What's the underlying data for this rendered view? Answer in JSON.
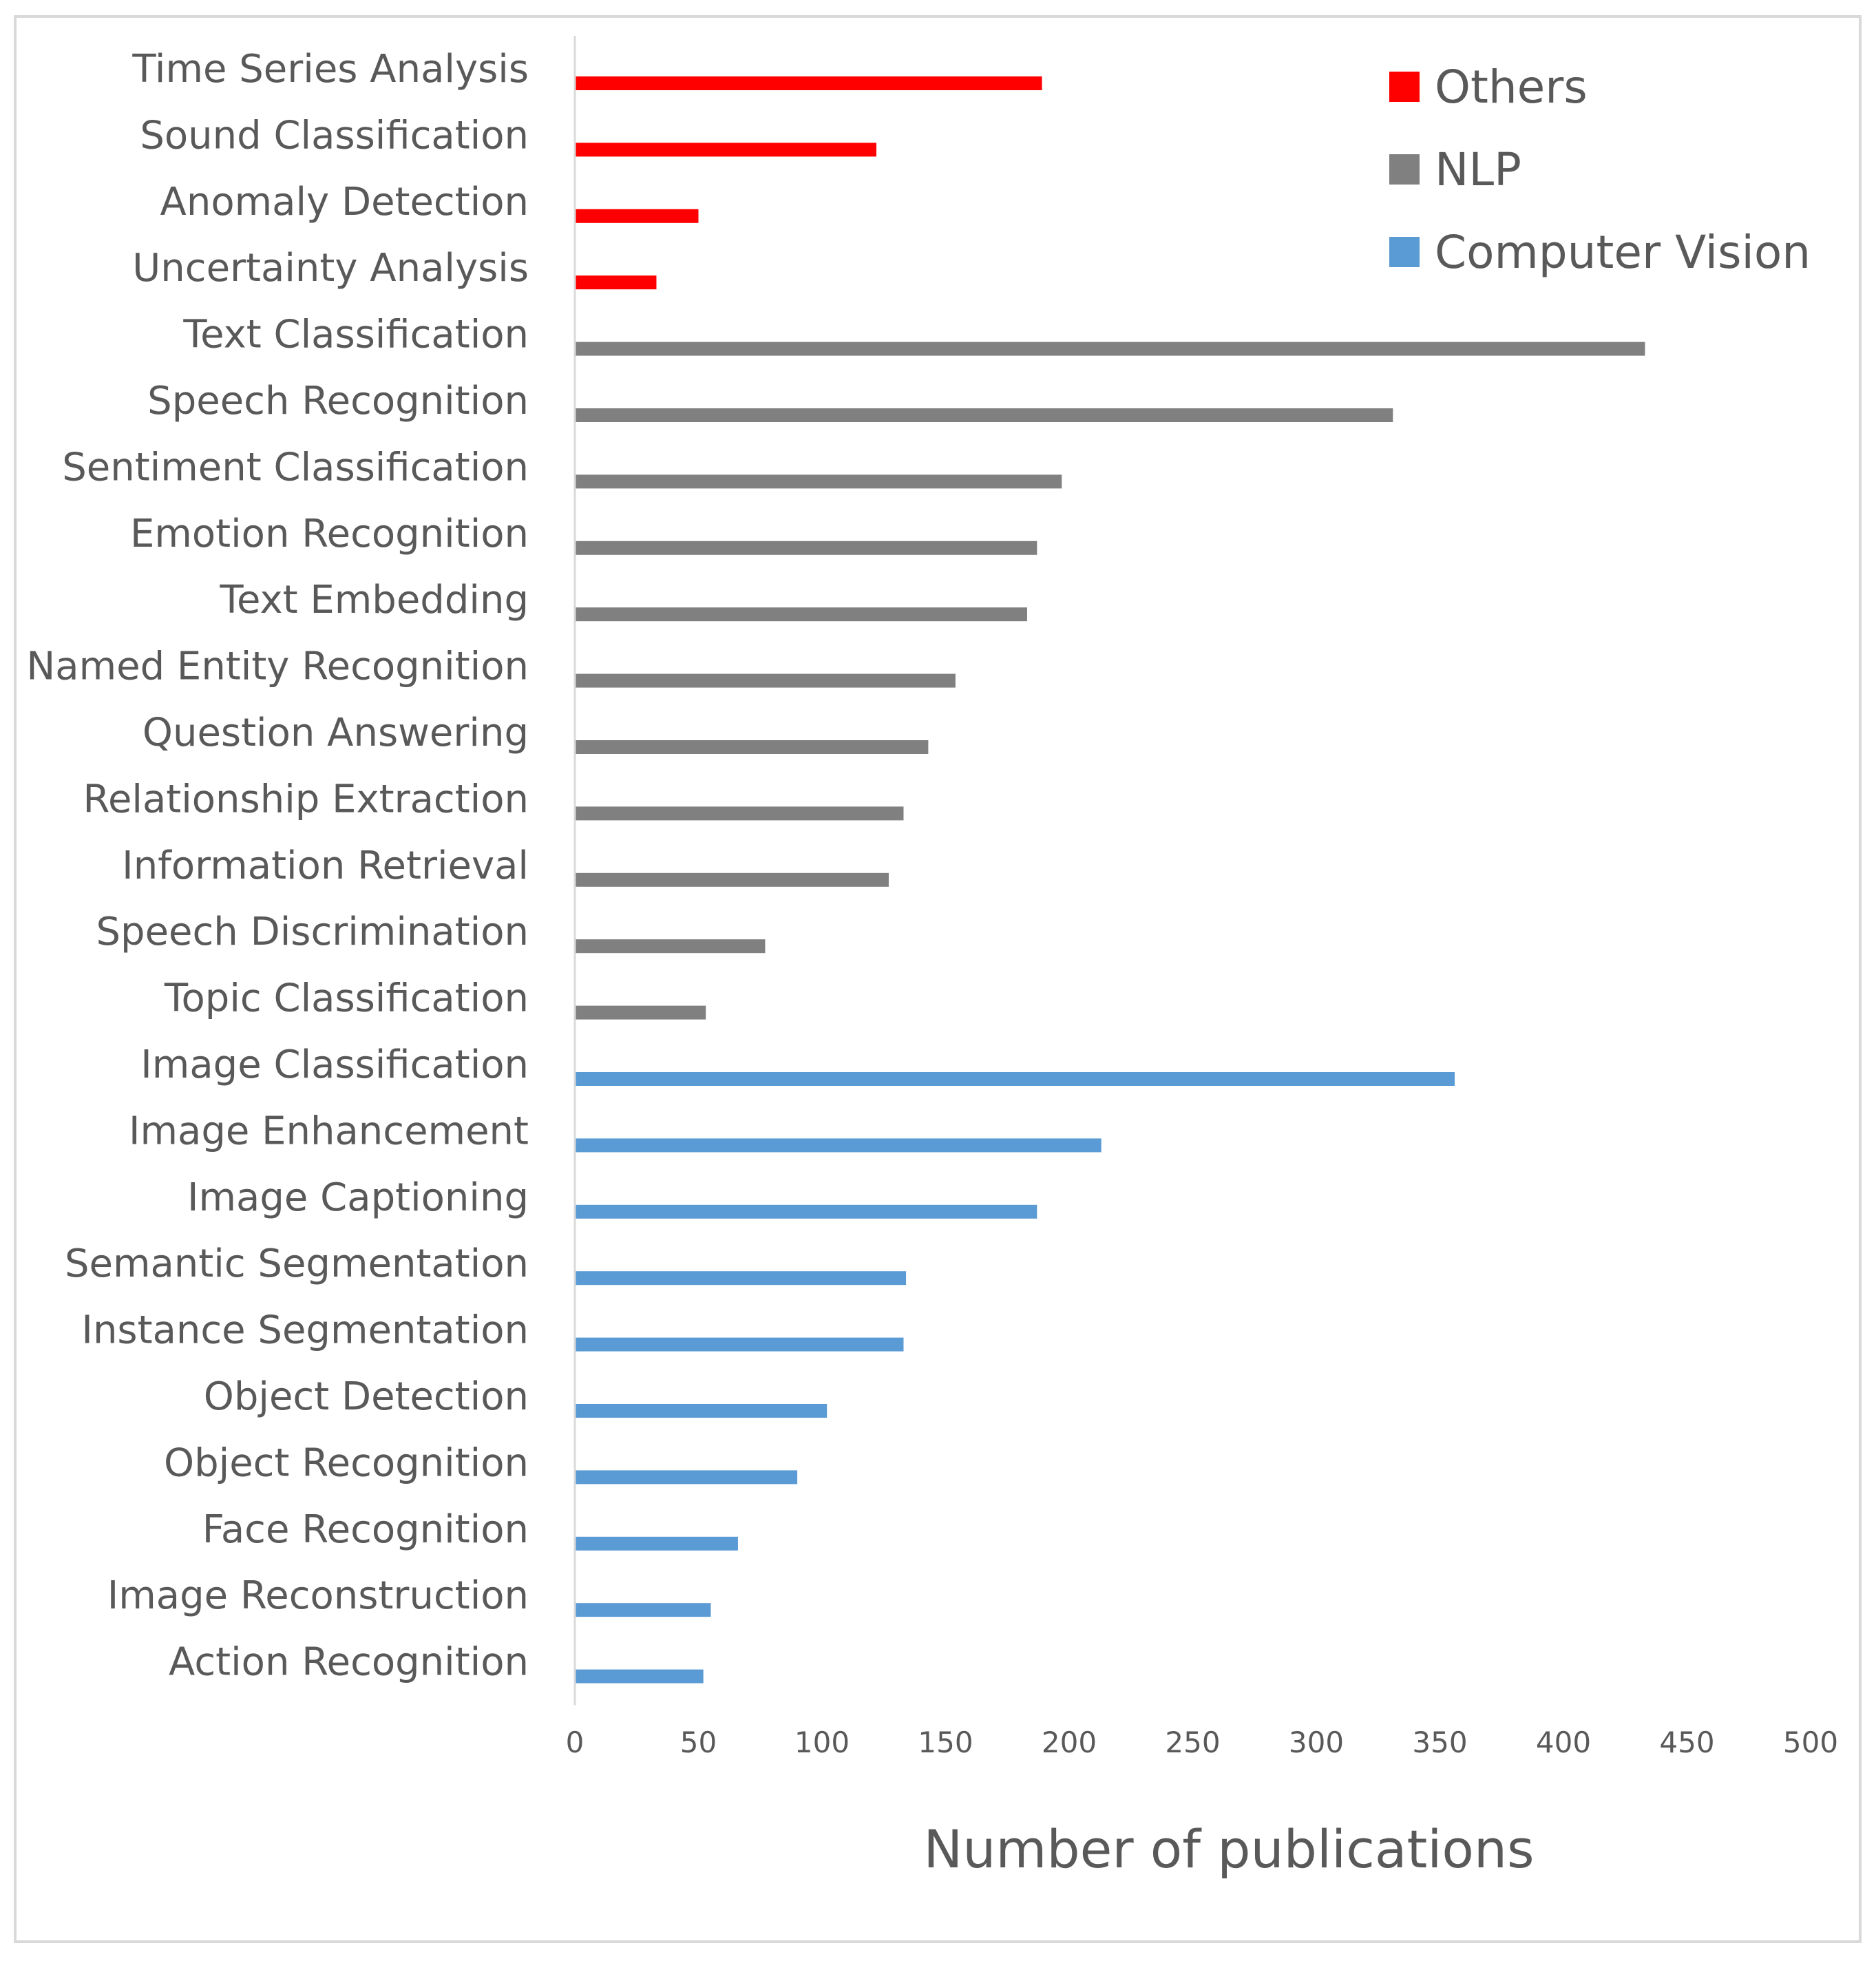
{
  "chart_data": {
    "type": "bar",
    "orientation": "horizontal",
    "title": "",
    "xlabel": "Number of publications",
    "ylabel": "",
    "xlim": [
      0,
      500
    ],
    "xticks": [
      0,
      50,
      100,
      150,
      200,
      250,
      300,
      350,
      400,
      450,
      500
    ],
    "grid": false,
    "legend_position": "top-right",
    "groups": [
      {
        "name": "Others",
        "color": "#ff0000"
      },
      {
        "name": "NLP",
        "color": "#808080"
      },
      {
        "name": "Computer Vision",
        "color": "#5b9bd5"
      }
    ],
    "legend_order": [
      "Others",
      "NLP",
      "Computer Vision"
    ],
    "bars": [
      {
        "label": "Time Series Analysis",
        "value": 189,
        "group": "Others"
      },
      {
        "label": "Sound Classification",
        "value": 122,
        "group": "Others"
      },
      {
        "label": "Anomaly Detection",
        "value": 50,
        "group": "Others"
      },
      {
        "label": "Uncertainty Analysis",
        "value": 33,
        "group": "Others"
      },
      {
        "label": "Text Classification",
        "value": 433,
        "group": "NLP"
      },
      {
        "label": "Speech Recognition",
        "value": 331,
        "group": "NLP"
      },
      {
        "label": "Sentiment Classification",
        "value": 197,
        "group": "NLP"
      },
      {
        "label": "Emotion Recognition",
        "value": 187,
        "group": "NLP"
      },
      {
        "label": "Text Embedding",
        "value": 183,
        "group": "NLP"
      },
      {
        "label": "Named Entity Recognition",
        "value": 154,
        "group": "NLP"
      },
      {
        "label": "Question Answering",
        "value": 143,
        "group": "NLP"
      },
      {
        "label": "Relationship Extraction",
        "value": 133,
        "group": "NLP"
      },
      {
        "label": "Information Retrieval",
        "value": 127,
        "group": "NLP"
      },
      {
        "label": "Speech Discrimination",
        "value": 77,
        "group": "NLP"
      },
      {
        "label": "Topic Classification",
        "value": 53,
        "group": "NLP"
      },
      {
        "label": "Image Classification",
        "value": 356,
        "group": "Computer Vision"
      },
      {
        "label": "Image Enhancement",
        "value": 213,
        "group": "Computer Vision"
      },
      {
        "label": "Image Captioning",
        "value": 187,
        "group": "Computer Vision"
      },
      {
        "label": "Semantic Segmentation",
        "value": 134,
        "group": "Computer Vision"
      },
      {
        "label": "Instance Segmentation",
        "value": 133,
        "group": "Computer Vision"
      },
      {
        "label": "Object Detection",
        "value": 102,
        "group": "Computer Vision"
      },
      {
        "label": "Object Recognition",
        "value": 90,
        "group": "Computer Vision"
      },
      {
        "label": "Face Recognition",
        "value": 66,
        "group": "Computer Vision"
      },
      {
        "label": "Image Reconstruction",
        "value": 55,
        "group": "Computer Vision"
      },
      {
        "label": "Action Recognition",
        "value": 52,
        "group": "Computer Vision"
      }
    ]
  }
}
